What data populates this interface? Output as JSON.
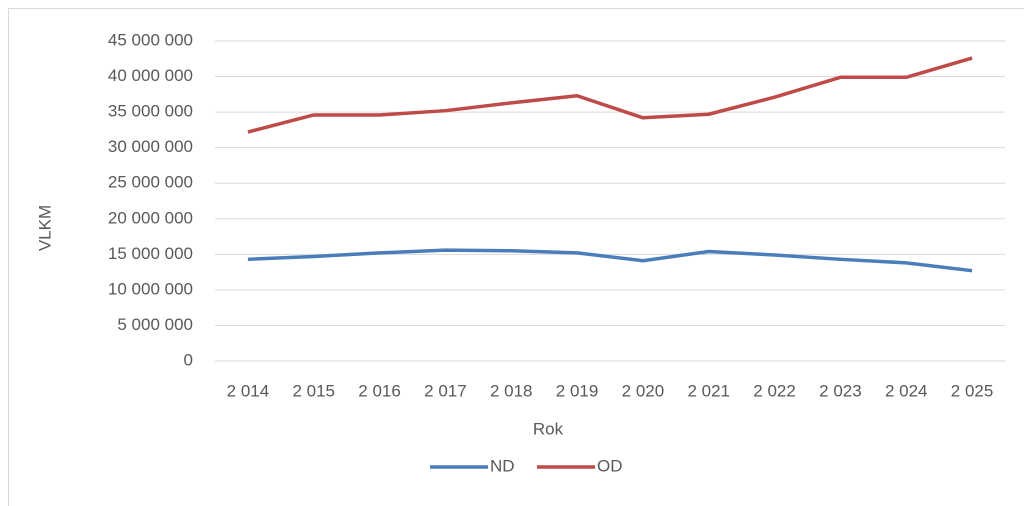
{
  "chart_data": {
    "type": "line",
    "x_label": "Rok",
    "y_label": "VLKM",
    "categories": [
      "2 014",
      "2 015",
      "2 016",
      "2 017",
      "2 018",
      "2 019",
      "2 020",
      "2 021",
      "2 022",
      "2 023",
      "2 024",
      "2 025"
    ],
    "series": [
      {
        "name": "ND",
        "color": "#4a7ebb",
        "values": [
          14300000,
          14700000,
          15200000,
          15600000,
          15500000,
          15200000,
          14100000,
          15400000,
          14900000,
          14300000,
          13800000,
          12700000
        ]
      },
      {
        "name": "OD",
        "color": "#be4b48",
        "values": [
          32200000,
          34600000,
          34600000,
          35200000,
          36300000,
          37300000,
          34200000,
          34700000,
          37100000,
          39900000,
          39900000,
          42600000
        ]
      }
    ],
    "ylim": [
      0,
      45000000
    ],
    "yticks": [
      0,
      {
        "value": 5000000,
        "label": "5 000 000"
      },
      {
        "value": 10000000,
        "label": "10 000 000"
      },
      {
        "value": 15000000,
        "label": "15 000 000"
      },
      {
        "value": 20000000,
        "label": "20 000 000"
      },
      {
        "value": 25000000,
        "label": "25 000 000"
      },
      {
        "value": 30000000,
        "label": "30 000 000"
      },
      {
        "value": 35000000,
        "label": "35 000 000"
      },
      {
        "value": 40000000,
        "label": "40 000 000"
      },
      {
        "value": 45000000,
        "label": "45 000 000"
      }
    ],
    "grid": true,
    "legend": "bottom"
  }
}
